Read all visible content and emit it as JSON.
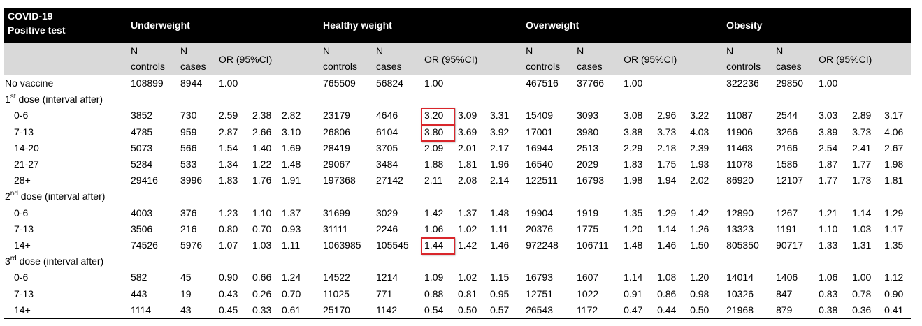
{
  "header": {
    "corner_line1": "COVID-19",
    "corner_line2": "Positive test",
    "groups": [
      "Underweight",
      "Healthy weight",
      "Overweight",
      "Obesity"
    ]
  },
  "subheader": {
    "n_controls_line1": "N",
    "n_controls_line2": "controls",
    "n_cases_line1": "N",
    "n_cases_line2": "cases",
    "or_label": "OR (95%CI)"
  },
  "rows": [
    {
      "type": "data",
      "label": "No vaccine",
      "indent": false,
      "cells": [
        [
          "108899",
          "8944",
          "1.00",
          "",
          ""
        ],
        [
          "765509",
          "56824",
          "1.00",
          "",
          ""
        ],
        [
          "467516",
          "37766",
          "1.00",
          "",
          ""
        ],
        [
          "322236",
          "29850",
          "1.00",
          "",
          ""
        ]
      ]
    },
    {
      "type": "section",
      "label_num": "1",
      "label_sup": "st",
      "label_rest": " dose (interval after)"
    },
    {
      "type": "data",
      "label": "0-6",
      "indent": true,
      "cells": [
        [
          "3852",
          "730",
          "2.59",
          "2.38",
          "2.82"
        ],
        [
          "23179",
          "4646",
          "3.20",
          "3.09",
          "3.31"
        ],
        [
          "15409",
          "3093",
          "3.08",
          "2.96",
          "3.22"
        ],
        [
          "11087",
          "2544",
          "3.03",
          "2.89",
          "3.17"
        ]
      ]
    },
    {
      "type": "data",
      "label": "7-13",
      "indent": true,
      "cells": [
        [
          "4785",
          "959",
          "2.87",
          "2.66",
          "3.10"
        ],
        [
          "26806",
          "6104",
          "3.80",
          "3.69",
          "3.92"
        ],
        [
          "17001",
          "3980",
          "3.88",
          "3.73",
          "4.03"
        ],
        [
          "11906",
          "3266",
          "3.89",
          "3.73",
          "4.06"
        ]
      ]
    },
    {
      "type": "data",
      "label": "14-20",
      "indent": true,
      "cells": [
        [
          "5073",
          "566",
          "1.54",
          "1.40",
          "1.69"
        ],
        [
          "28419",
          "3705",
          "2.09",
          "2.01",
          "2.17"
        ],
        [
          "16944",
          "2513",
          "2.29",
          "2.18",
          "2.39"
        ],
        [
          "11463",
          "2166",
          "2.54",
          "2.41",
          "2.67"
        ]
      ]
    },
    {
      "type": "data",
      "label": "21-27",
      "indent": true,
      "cells": [
        [
          "5284",
          "533",
          "1.34",
          "1.22",
          "1.48"
        ],
        [
          "29067",
          "3484",
          "1.88",
          "1.81",
          "1.96"
        ],
        [
          "16540",
          "2029",
          "1.83",
          "1.75",
          "1.93"
        ],
        [
          "11078",
          "1586",
          "1.87",
          "1.77",
          "1.98"
        ]
      ]
    },
    {
      "type": "data",
      "label": "28+",
      "indent": true,
      "cells": [
        [
          "29416",
          "3996",
          "1.83",
          "1.76",
          "1.91"
        ],
        [
          "197368",
          "27142",
          "2.11",
          "2.08",
          "2.14"
        ],
        [
          "122511",
          "16793",
          "1.98",
          "1.94",
          "2.02"
        ],
        [
          "86920",
          "12107",
          "1.77",
          "1.73",
          "1.81"
        ]
      ]
    },
    {
      "type": "section",
      "label_num": "2",
      "label_sup": "nd",
      "label_rest": " dose (interval after)"
    },
    {
      "type": "data",
      "label": "0-6",
      "indent": true,
      "cells": [
        [
          "4003",
          "376",
          "1.23",
          "1.10",
          "1.37"
        ],
        [
          "31699",
          "3029",
          "1.42",
          "1.37",
          "1.48"
        ],
        [
          "19904",
          "1919",
          "1.35",
          "1.29",
          "1.42"
        ],
        [
          "12890",
          "1267",
          "1.21",
          "1.14",
          "1.29"
        ]
      ]
    },
    {
      "type": "data",
      "label": "7-13",
      "indent": true,
      "cells": [
        [
          "3506",
          "216",
          "0.80",
          "0.70",
          "0.93"
        ],
        [
          "31111",
          "2246",
          "1.06",
          "1.02",
          "1.11"
        ],
        [
          "20376",
          "1775",
          "1.20",
          "1.14",
          "1.26"
        ],
        [
          "13323",
          "1191",
          "1.10",
          "1.03",
          "1.17"
        ]
      ]
    },
    {
      "type": "data",
      "label": "14+",
      "indent": true,
      "cells": [
        [
          "74526",
          "5976",
          "1.07",
          "1.03",
          "1.11"
        ],
        [
          "1063985",
          "105545",
          "1.44",
          "1.42",
          "1.46"
        ],
        [
          "972248",
          "106711",
          "1.48",
          "1.46",
          "1.50"
        ],
        [
          "805350",
          "90717",
          "1.33",
          "1.31",
          "1.35"
        ]
      ]
    },
    {
      "type": "section",
      "label_num": "3",
      "label_sup": "rd",
      "label_rest": " dose (interval after)"
    },
    {
      "type": "data",
      "label": "0-6",
      "indent": true,
      "cells": [
        [
          "582",
          "45",
          "0.90",
          "0.66",
          "1.24"
        ],
        [
          "14522",
          "1214",
          "1.09",
          "1.02",
          "1.15"
        ],
        [
          "16793",
          "1607",
          "1.14",
          "1.08",
          "1.20"
        ],
        [
          "14014",
          "1406",
          "1.06",
          "1.00",
          "1.12"
        ]
      ]
    },
    {
      "type": "data",
      "label": "7-13",
      "indent": true,
      "cells": [
        [
          "443",
          "19",
          "0.43",
          "0.26",
          "0.70"
        ],
        [
          "11025",
          "771",
          "0.88",
          "0.81",
          "0.95"
        ],
        [
          "12751",
          "1022",
          "0.91",
          "0.86",
          "0.98"
        ],
        [
          "10326",
          "847",
          "0.83",
          "0.78",
          "0.90"
        ]
      ]
    },
    {
      "type": "data",
      "label": "14+",
      "indent": true,
      "cells": [
        [
          "1114",
          "43",
          "0.45",
          "0.33",
          "0.61"
        ],
        [
          "25170",
          "1142",
          "0.54",
          "0.50",
          "0.57"
        ],
        [
          "26543",
          "1172",
          "0.47",
          "0.44",
          "0.50"
        ],
        [
          "21968",
          "879",
          "0.38",
          "0.36",
          "0.41"
        ]
      ]
    }
  ],
  "highlights": [
    {
      "row": 2,
      "group": 1,
      "col": 2
    },
    {
      "row": 3,
      "group": 1,
      "col": 2
    },
    {
      "row": 10,
      "group": 1,
      "col": 2
    }
  ],
  "colors": {
    "highlight_border": "#d9262b",
    "header_bg": "#000000",
    "subheader_bg": "#d9d9d9"
  }
}
